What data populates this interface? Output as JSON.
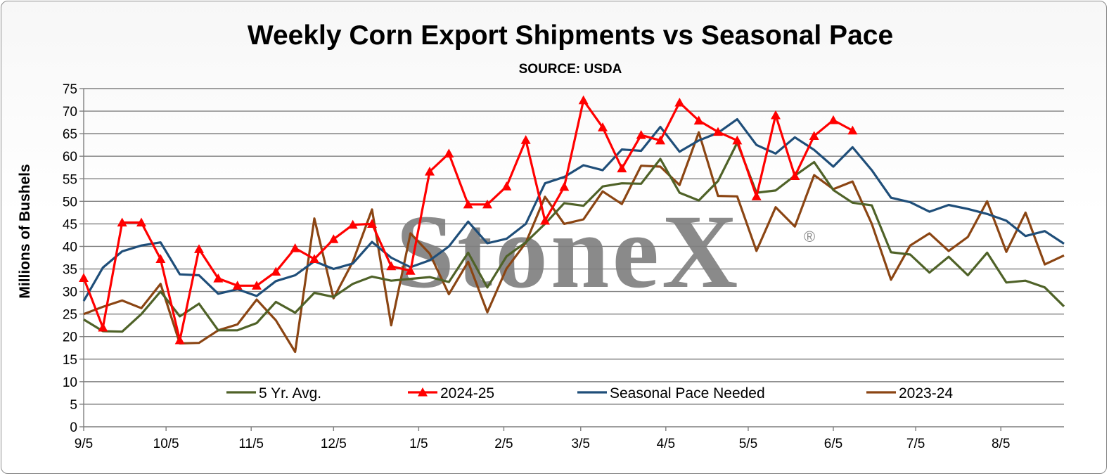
{
  "chart_data": {
    "type": "line",
    "title": "Weekly Corn Export Shipments vs Seasonal Pace",
    "subtitle": "SOURCE: USDA",
    "ylabel": "Millions of Bushels",
    "xlabel": "",
    "ylim": [
      0,
      75
    ],
    "yticks": [
      0,
      5,
      10,
      15,
      20,
      25,
      30,
      35,
      40,
      45,
      50,
      55,
      60,
      65,
      70,
      75
    ],
    "x_dates": [
      "9/5",
      "9/12",
      "9/19",
      "9/26",
      "10/3",
      "10/10",
      "10/17",
      "10/24",
      "10/31",
      "11/7",
      "11/14",
      "11/21",
      "11/28",
      "12/5",
      "12/12",
      "12/19",
      "12/26",
      "1/2",
      "1/9",
      "1/16",
      "1/23",
      "1/30",
      "2/6",
      "2/13",
      "2/20",
      "2/27",
      "3/6",
      "3/13",
      "3/20",
      "3/27",
      "4/3",
      "4/10",
      "4/17",
      "4/24",
      "5/1",
      "5/8",
      "5/15",
      "5/22",
      "5/29",
      "6/5",
      "6/12",
      "6/19",
      "6/26",
      "7/3",
      "7/10",
      "7/17",
      "7/24",
      "7/31",
      "8/7",
      "8/14",
      "8/21",
      "8/28"
    ],
    "xtick_labels": [
      "9/5",
      "10/5",
      "11/5",
      "12/5",
      "1/5",
      "2/5",
      "3/5",
      "4/5",
      "5/5",
      "6/5",
      "7/5",
      "8/5"
    ],
    "grid": true,
    "legend_position": "bottom-inside",
    "watermark": "StoneX",
    "watermark_mark": "®",
    "series": [
      {
        "name": "5 Yr. Avg.",
        "color": "#4f6228",
        "marker": "none",
        "values": [
          23.8,
          21.2,
          21.1,
          25.0,
          30.0,
          24.5,
          27.3,
          21.4,
          21.4,
          23.0,
          27.7,
          25.3,
          29.7,
          28.8,
          31.7,
          33.3,
          32.4,
          32.8,
          33.2,
          32.1,
          38.6,
          30.9,
          37.8,
          40.9,
          45.0,
          49.6,
          49.0,
          53.3,
          54.0,
          53.9,
          59.4,
          51.9,
          50.2,
          54.5,
          63.0,
          51.9,
          52.4,
          55.7,
          58.7,
          52.5,
          49.7,
          49.1,
          38.7,
          38.2,
          34.2,
          37.7,
          33.6,
          38.6,
          32.0,
          32.4,
          30.9,
          26.7
        ]
      },
      {
        "name": "2024-25",
        "color": "#ff0000",
        "marker": "triangle",
        "values": [
          33.0,
          22.0,
          45.3,
          45.3,
          37.2,
          19.2,
          39.4,
          32.9,
          31.3,
          31.3,
          34.4,
          39.6,
          37.2,
          41.6,
          44.8,
          45.0,
          35.6,
          34.6,
          56.6,
          60.6,
          49.3,
          49.3,
          53.3,
          63.6,
          45.7,
          53.2,
          72.4,
          66.4,
          57.3,
          64.7,
          63.5,
          71.9,
          67.9,
          65.4,
          63.5,
          51.1,
          69.1,
          55.6,
          64.5,
          68.0,
          65.7
        ]
      },
      {
        "name": "Seasonal Pace Needed",
        "color": "#1f4e79",
        "marker": "none",
        "values": [
          27.9,
          35.3,
          38.9,
          40.2,
          40.9,
          33.8,
          33.6,
          29.5,
          30.5,
          29.0,
          32.3,
          33.6,
          36.7,
          35.0,
          36.2,
          41.0,
          37.5,
          35.4,
          36.9,
          40.0,
          45.5,
          40.7,
          41.7,
          45.0,
          54.0,
          55.4,
          58.0,
          56.9,
          61.5,
          61.2,
          66.5,
          61.0,
          63.5,
          65.2,
          68.2,
          62.5,
          60.6,
          64.2,
          61.4,
          57.7,
          62.0,
          56.9,
          50.8,
          49.8,
          47.7,
          49.2,
          48.3,
          47.2,
          45.7,
          42.3,
          43.4,
          40.6
        ]
      },
      {
        "name": "2023-24",
        "color": "#8b4513",
        "marker": "none",
        "values": [
          25.0,
          26.6,
          28.0,
          26.3,
          31.7,
          18.5,
          18.6,
          21.4,
          22.7,
          28.2,
          23.6,
          16.6,
          46.2,
          28.5,
          36.6,
          48.2,
          22.5,
          42.9,
          38.4,
          29.4,
          36.6,
          25.4,
          35.1,
          40.8,
          51.0,
          45.0,
          46.0,
          52.2,
          49.4,
          57.9,
          57.7,
          53.6,
          65.3,
          51.2,
          51.1,
          39.0,
          48.7,
          44.4,
          55.8,
          52.7,
          54.4,
          45.0,
          32.6,
          40.2,
          42.9,
          39.0,
          42.1,
          50.0,
          38.8,
          47.5,
          36.0,
          38.0
        ]
      }
    ]
  }
}
